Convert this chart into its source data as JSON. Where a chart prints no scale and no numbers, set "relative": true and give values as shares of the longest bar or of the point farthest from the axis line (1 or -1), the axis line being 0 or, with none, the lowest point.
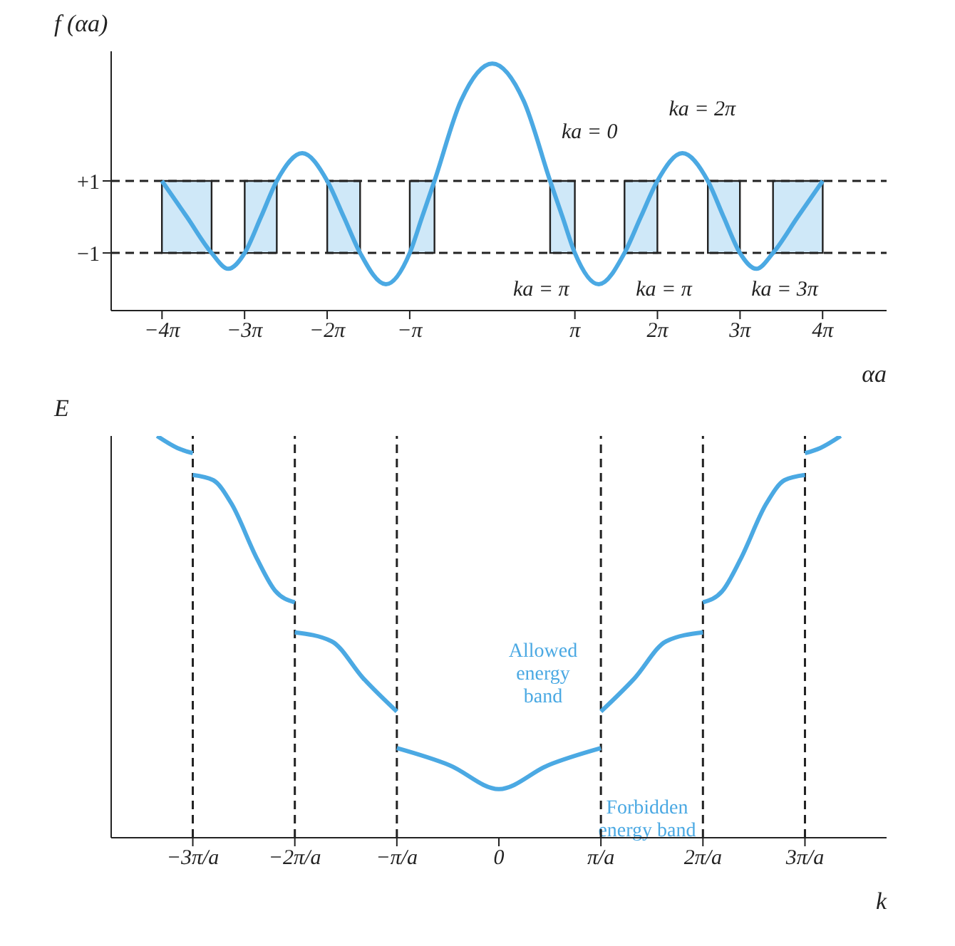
{
  "chart_data": [
    {
      "type": "line",
      "xlabel": "αa",
      "ylabel": "f (αa)",
      "color": "#4ba9e3",
      "marker": "none",
      "line_style": "solid",
      "grid": false,
      "legend": false,
      "x": [
        -12.57,
        -11.62,
        -10.68,
        -10.05,
        -9.42,
        -8.8,
        -8.2,
        -7.23,
        -6.28,
        -5.65,
        -5.03,
        -4.05,
        -3.14,
        -2.67,
        -2.2,
        -1.19,
        0,
        1.19,
        2.2,
        2.67,
        3.14,
        4.05,
        5.03,
        5.65,
        6.28,
        7.23,
        8.2,
        8.8,
        9.42,
        10.05,
        10.68,
        11.62,
        12.57
      ],
      "values": [
        1,
        0,
        -1,
        -1.44,
        -1,
        0,
        1,
        1.77,
        1,
        0,
        -1,
        -1.87,
        -1,
        0,
        1,
        3.23,
        4.26,
        3.23,
        1,
        0,
        -1,
        -1.87,
        -1,
        0,
        1,
        1.77,
        1,
        0,
        -1,
        -1.44,
        -1,
        0,
        1
      ],
      "xlim": [
        -14.5,
        15
      ],
      "xticks": [
        {
          "value": -12.566,
          "label": "−4π"
        },
        {
          "value": -9.425,
          "label": "−3π"
        },
        {
          "value": -6.283,
          "label": "−2π"
        },
        {
          "value": -3.142,
          "label": "−π"
        },
        {
          "value": 3.142,
          "label": "π"
        },
        {
          "value": 6.283,
          "label": "2π"
        },
        {
          "value": 9.425,
          "label": "3π"
        },
        {
          "value": 12.566,
          "label": "4π"
        }
      ],
      "ylim": [
        -2.6,
        4.6
      ],
      "yticks": [
        {
          "value": -1,
          "label": "−1"
        },
        {
          "value": 1,
          "label": "+1"
        }
      ],
      "ref_lines": [
        {
          "axis": "y",
          "value": 1,
          "line_style": "dashed",
          "color": "#222222"
        },
        {
          "axis": "y",
          "value": -1,
          "line_style": "dashed",
          "color": "#222222"
        }
      ],
      "bands": [
        {
          "axis": "x",
          "from": -12.57,
          "to": -10.68,
          "color": "#cfe8f8"
        },
        {
          "axis": "x",
          "from": -9.42,
          "to": -8.2,
          "color": "#cfe8f8"
        },
        {
          "axis": "x",
          "from": -6.28,
          "to": -5.03,
          "color": "#cfe8f8"
        },
        {
          "axis": "x",
          "from": -3.14,
          "to": -2.2,
          "color": "#cfe8f8"
        },
        {
          "axis": "x",
          "from": 2.2,
          "to": 3.14,
          "color": "#cfe8f8"
        },
        {
          "axis": "x",
          "from": 5.03,
          "to": 6.28,
          "color": "#cfe8f8"
        },
        {
          "axis": "x",
          "from": 8.2,
          "to": 9.42,
          "color": "#cfe8f8"
        },
        {
          "axis": "x",
          "from": 10.68,
          "to": 12.57,
          "color": "#cfe8f8"
        }
      ],
      "annotations": [
        {
          "text": "ka = 0",
          "x": 2.2,
          "y": 1
        },
        {
          "text": "ka = 2π",
          "x": 6.28,
          "y": 1
        },
        {
          "text": "ka = π",
          "x": 3.14,
          "y": -1
        },
        {
          "text": "ka = π",
          "x": 5.03,
          "y": -1
        },
        {
          "text": "ka = 3π",
          "x": 9.42,
          "y": -1
        }
      ]
    },
    {
      "type": "line",
      "relative": true,
      "xlabel": "k",
      "ylabel": "E",
      "marker": "none",
      "line_style": "solid",
      "grid": false,
      "legend": false,
      "xlim": [
        -3.8,
        3.8
      ],
      "xticks": [
        {
          "value": -3,
          "label": "−3π/a"
        },
        {
          "value": -2,
          "label": "−2π/a"
        },
        {
          "value": -1,
          "label": "−π/a"
        },
        0,
        {
          "value": 1,
          "label": "π/a"
        },
        {
          "value": 2,
          "label": "2π/a"
        },
        {
          "value": 3,
          "label": "3π/a"
        }
      ],
      "series": [
        {
          "color": "#4ba9e3",
          "x": [
            -3.35,
            -3.15,
            -3
          ],
          "values": [
            1,
            0.97,
            0.957
          ]
        },
        {
          "color": "#4ba9e3",
          "x": [
            -3,
            -2.8,
            -2.62,
            -2.37,
            -2.19,
            -2
          ],
          "values": [
            0.903,
            0.89,
            0.831,
            0.694,
            0.614,
            0.586
          ]
        },
        {
          "color": "#4ba9e3",
          "x": [
            -2,
            -1.64,
            -1.33,
            -1
          ],
          "values": [
            0.511,
            0.489,
            0.397,
            0.314
          ]
        },
        {
          "color": "#4ba9e3",
          "x": [
            -1,
            -0.48,
            0,
            0.48,
            1
          ],
          "values": [
            0.223,
            0.18,
            0.121,
            0.18,
            0.223
          ]
        },
        {
          "color": "#4ba9e3",
          "x": [
            1,
            1.33,
            1.64,
            2
          ],
          "values": [
            0.314,
            0.397,
            0.489,
            0.511
          ]
        },
        {
          "color": "#4ba9e3",
          "x": [
            2,
            2.19,
            2.37,
            2.62,
            2.8,
            3
          ],
          "values": [
            0.586,
            0.614,
            0.694,
            0.831,
            0.89,
            0.903
          ]
        },
        {
          "color": "#4ba9e3",
          "x": [
            3,
            3.15,
            3.35
          ],
          "values": [
            0.957,
            0.97,
            1
          ]
        }
      ],
      "ref_lines": [
        {
          "axis": "x",
          "value": -3,
          "line_style": "dashed",
          "color": "#222222"
        },
        {
          "axis": "x",
          "value": -2,
          "line_style": "dashed",
          "color": "#222222"
        },
        {
          "axis": "x",
          "value": -1,
          "line_style": "dashed",
          "color": "#222222"
        },
        {
          "axis": "x",
          "value": 1,
          "line_style": "dashed",
          "color": "#222222"
        },
        {
          "axis": "x",
          "value": 2,
          "line_style": "dashed",
          "color": "#222222"
        },
        {
          "axis": "x",
          "value": 3,
          "line_style": "dashed",
          "color": "#222222"
        }
      ],
      "annotations": [
        "Allowed energy band",
        "Forbidden energy band"
      ]
    }
  ]
}
